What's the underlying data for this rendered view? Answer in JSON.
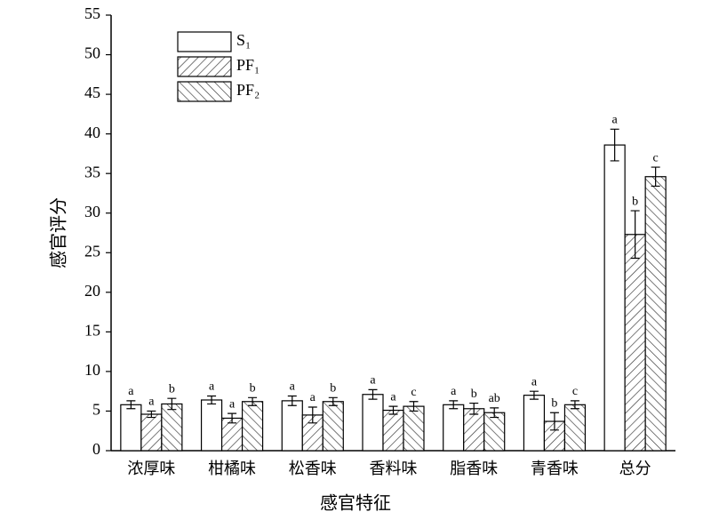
{
  "chart_data": {
    "type": "bar",
    "xlabel": "感官特征",
    "ylabel": "感官评分",
    "categories": [
      "浓厚味",
      "柑橘味",
      "松香味",
      "香料味",
      "脂香味",
      "青香味",
      "总分"
    ],
    "series": [
      {
        "name": "S₁",
        "color": "#ffffff",
        "hatch": "none",
        "values": [
          5.8,
          6.4,
          6.3,
          7.1,
          5.8,
          7.0,
          38.6
        ],
        "errors": [
          0.5,
          0.5,
          0.6,
          0.6,
          0.5,
          0.5,
          2.0
        ],
        "labels": [
          "a",
          "a",
          "a",
          "a",
          "a",
          "a",
          "a"
        ]
      },
      {
        "name": "PF₁",
        "color": "#ffffff",
        "hatch": "/",
        "values": [
          4.6,
          4.1,
          4.5,
          5.1,
          5.3,
          3.7,
          27.3
        ],
        "errors": [
          0.4,
          0.6,
          1.0,
          0.5,
          0.7,
          1.1,
          3.0
        ],
        "labels": [
          "a",
          "a",
          "a",
          "a",
          "b",
          "b",
          "b"
        ]
      },
      {
        "name": "PF₂",
        "color": "#ffffff",
        "hatch": "\\",
        "values": [
          5.9,
          6.2,
          6.2,
          5.6,
          4.8,
          5.8,
          34.6
        ],
        "errors": [
          0.7,
          0.5,
          0.5,
          0.6,
          0.6,
          0.5,
          1.2
        ],
        "labels": [
          "b",
          "b",
          "b",
          "c",
          "ab",
          "c",
          "c"
        ]
      }
    ],
    "ylim": [
      0,
      55
    ],
    "yticks": [
      0,
      5,
      10,
      15,
      20,
      25,
      30,
      35,
      40,
      45,
      50,
      55
    ],
    "grid": false,
    "legend": "upper left"
  }
}
